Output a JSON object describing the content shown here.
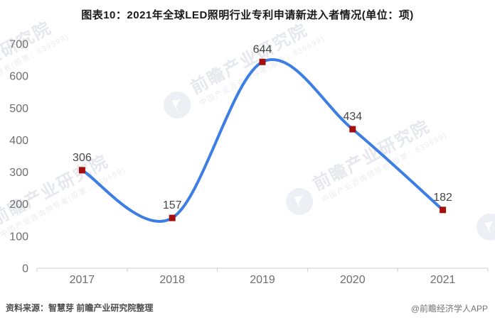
{
  "chart_data": {
    "type": "line",
    "title": "图表10：2021年全球LED照明行业专利申请新进入者情况(单位：项)",
    "categories": [
      "2017",
      "2018",
      "2019",
      "2020",
      "2021"
    ],
    "values": [
      306,
      157,
      644,
      434,
      182
    ],
    "xlabel": "",
    "ylabel": "",
    "ylim": [
      0,
      700
    ],
    "ytick_step": 100,
    "yticks": [
      0,
      100,
      200,
      300,
      400,
      500,
      600,
      700
    ],
    "grid": "off",
    "legend": "none",
    "smooth": true,
    "marker_shape": "square",
    "colors": {
      "line": "#3d7ee5",
      "marker": "#a30f0f",
      "data_label": "#474747",
      "axis_line": "#cccccc",
      "tick_label": "#6e6e6e",
      "title": "#1a1a1a"
    }
  },
  "footer": {
    "source_note": "资料来源：智慧芽 前瞻产业研究院整理",
    "credit": "@前瞻经济学人APP"
  },
  "watermark": {
    "big_text": "前瞻产业研究院",
    "small_text": "中国产业咨询领导者(股票：839599)"
  }
}
